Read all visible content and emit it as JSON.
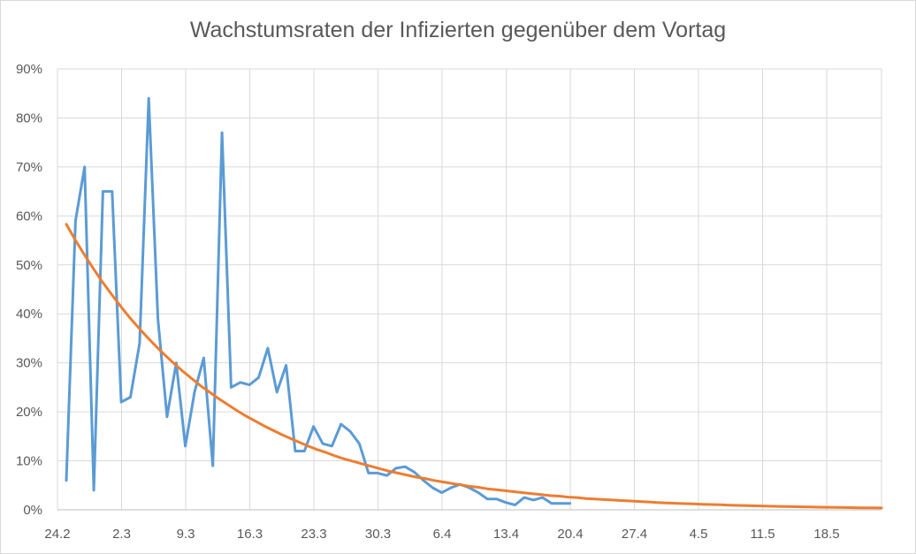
{
  "chart_data": {
    "type": "line",
    "title": "Wachstumsraten der Infizierten gegenüber dem Vortag",
    "xlabel": "",
    "ylabel": "",
    "grid": true,
    "legend": "none",
    "x_tick_labels": [
      "24.2",
      "2.3",
      "9.3",
      "16.3",
      "23.3",
      "30.3",
      "6.4",
      "13.4",
      "20.4",
      "27.4",
      "4.5",
      "11.5",
      "18.5"
    ],
    "y_tick_labels": [
      "0%",
      "10%",
      "20%",
      "30%",
      "40%",
      "50%",
      "60%",
      "70%",
      "80%",
      "90%"
    ],
    "ylim": [
      0,
      0.9
    ],
    "x_start_date": "2020-02-24",
    "x_days_total": 91,
    "series": [
      {
        "name": "",
        "color": "#5b9bd5",
        "values": [
          0.06,
          0.59,
          0.7,
          0.04,
          0.65,
          0.65,
          0.22,
          0.23,
          0.34,
          0.84,
          0.39,
          0.19,
          0.3,
          0.13,
          0.24,
          0.31,
          0.09,
          0.77,
          0.25,
          0.26,
          0.255,
          0.27,
          0.33,
          0.24,
          0.295,
          0.12,
          0.12,
          0.17,
          0.135,
          0.13,
          0.175,
          0.16,
          0.135,
          0.075,
          0.075,
          0.07,
          0.085,
          0.088,
          0.077,
          0.06,
          0.045,
          0.035,
          0.045,
          0.052,
          0.045,
          0.035,
          0.022,
          0.022,
          0.015,
          0.01,
          0.025,
          0.02,
          0.025,
          0.013,
          0.013,
          0.013
        ]
      },
      {
        "name": "",
        "color": "#ed7d31",
        "values": [
          0.583,
          0.551,
          0.521,
          0.493,
          0.466,
          0.441,
          0.417,
          0.394,
          0.373,
          0.353,
          0.334,
          0.316,
          0.299,
          0.283,
          0.268,
          0.253,
          0.24,
          0.227,
          0.215,
          0.203,
          0.192,
          0.182,
          0.172,
          0.163,
          0.154,
          0.146,
          0.138,
          0.13,
          0.123,
          0.117,
          0.11,
          0.104,
          0.099,
          0.094,
          0.089,
          0.084,
          0.079,
          0.075,
          0.071,
          0.067,
          0.064,
          0.06,
          0.057,
          0.054,
          0.051,
          0.048,
          0.046,
          0.043,
          0.041,
          0.039,
          0.037,
          0.035,
          0.033,
          0.031,
          0.029,
          0.028,
          0.026,
          0.025,
          0.023,
          0.022,
          0.021,
          0.02,
          0.019,
          0.018,
          0.017,
          0.016,
          0.015,
          0.014,
          0.0134,
          0.0127,
          0.012,
          0.0114,
          0.0108,
          0.0102,
          0.0096,
          0.0091,
          0.0086,
          0.0081,
          0.0077,
          0.0073,
          0.0069,
          0.0065,
          0.0062,
          0.0058,
          0.0055,
          0.0052,
          0.0049,
          0.0047,
          0.0044,
          0.0042,
          0.004,
          0.0038
        ]
      }
    ]
  }
}
